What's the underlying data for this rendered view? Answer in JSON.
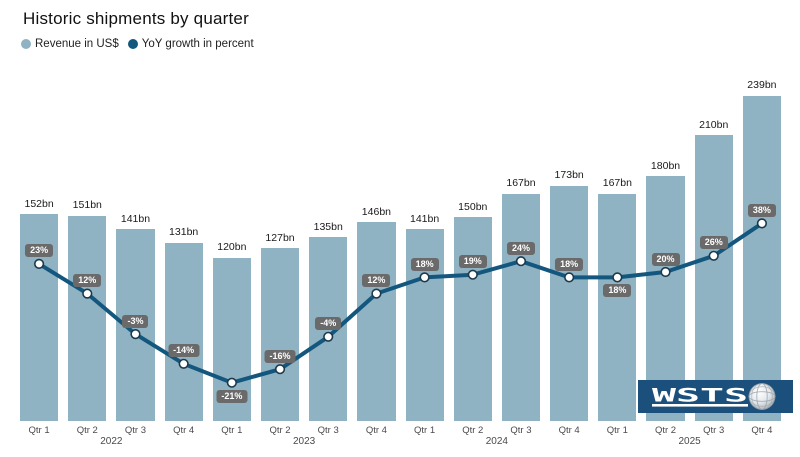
{
  "title": "Historic shipments by quarter",
  "legend": {
    "items": [
      {
        "label": "Revenue in US$",
        "color": "#8FB3C3"
      },
      {
        "label": "YoY growth in percent",
        "color": "#14577E"
      }
    ]
  },
  "colors": {
    "bar": "#8FB3C3",
    "line": "#14577E",
    "point_fill": "#FFFFFF",
    "point_stroke": "#1D3A4D",
    "badge_bg": "#6A6A6A",
    "badge_text": "#FFFFFF",
    "logo_bg": "#1A507B"
  },
  "x_axis": {
    "quarter_labels": [
      "Qtr 1",
      "Qtr 2",
      "Qtr 3",
      "Qtr 4",
      "Qtr 1",
      "Qtr 2",
      "Qtr 3",
      "Qtr 4",
      "Qtr 1",
      "Qtr 2",
      "Qtr 3",
      "Qtr 4",
      "Qtr 1",
      "Qtr 2",
      "Qtr 3",
      "Qtr 4"
    ],
    "year_labels": [
      "2022",
      "2023",
      "2024",
      "2025"
    ]
  },
  "chart_data": {
    "type": "bar",
    "subtype": "bar-with-line-overlay",
    "title": "Historic shipments by quarter",
    "categories": [
      "2022 Qtr 1",
      "2022 Qtr 2",
      "2022 Qtr 3",
      "2022 Qtr 4",
      "2023 Qtr 1",
      "2023 Qtr 2",
      "2023 Qtr 3",
      "2023 Qtr 4",
      "2024 Qtr 1",
      "2024 Qtr 2",
      "2024 Qtr 3",
      "2024 Qtr 4",
      "2025 Qtr 1",
      "2025 Qtr 2",
      "2025 Qtr 3",
      "2025 Qtr 4"
    ],
    "series": [
      {
        "name": "Revenue in US$",
        "type": "bar",
        "unit": "bn",
        "values": [
          152,
          151,
          141,
          131,
          120,
          127,
          135,
          146,
          141,
          150,
          167,
          173,
          167,
          180,
          210,
          239
        ],
        "labels": [
          "152bn",
          "151bn",
          "141bn",
          "131bn",
          "120bn",
          "127bn",
          "135bn",
          "146bn",
          "141bn",
          "150bn",
          "167bn",
          "173bn",
          "167bn",
          "180bn",
          "210bn",
          "239bn"
        ]
      },
      {
        "name": "YoY growth in percent",
        "type": "line",
        "unit": "%",
        "values": [
          23,
          12,
          -3,
          -14,
          -21,
          -16,
          -4,
          12,
          18,
          19,
          24,
          18,
          18,
          20,
          26,
          38
        ],
        "labels": [
          "23%",
          "12%",
          "-3%",
          "-14%",
          "-21%",
          "-16%",
          "-4%",
          "12%",
          "18%",
          "19%",
          "24%",
          "18%",
          "18%",
          "20%",
          "26%",
          "38%"
        ],
        "label_below_indices": [
          4,
          12
        ]
      }
    ],
    "xlabel": "",
    "ylabel": "",
    "grid": false,
    "y_axis_visible": false,
    "legend_position": "top-left"
  },
  "logo": {
    "text": "WSTS",
    "icon": "globe-icon"
  }
}
